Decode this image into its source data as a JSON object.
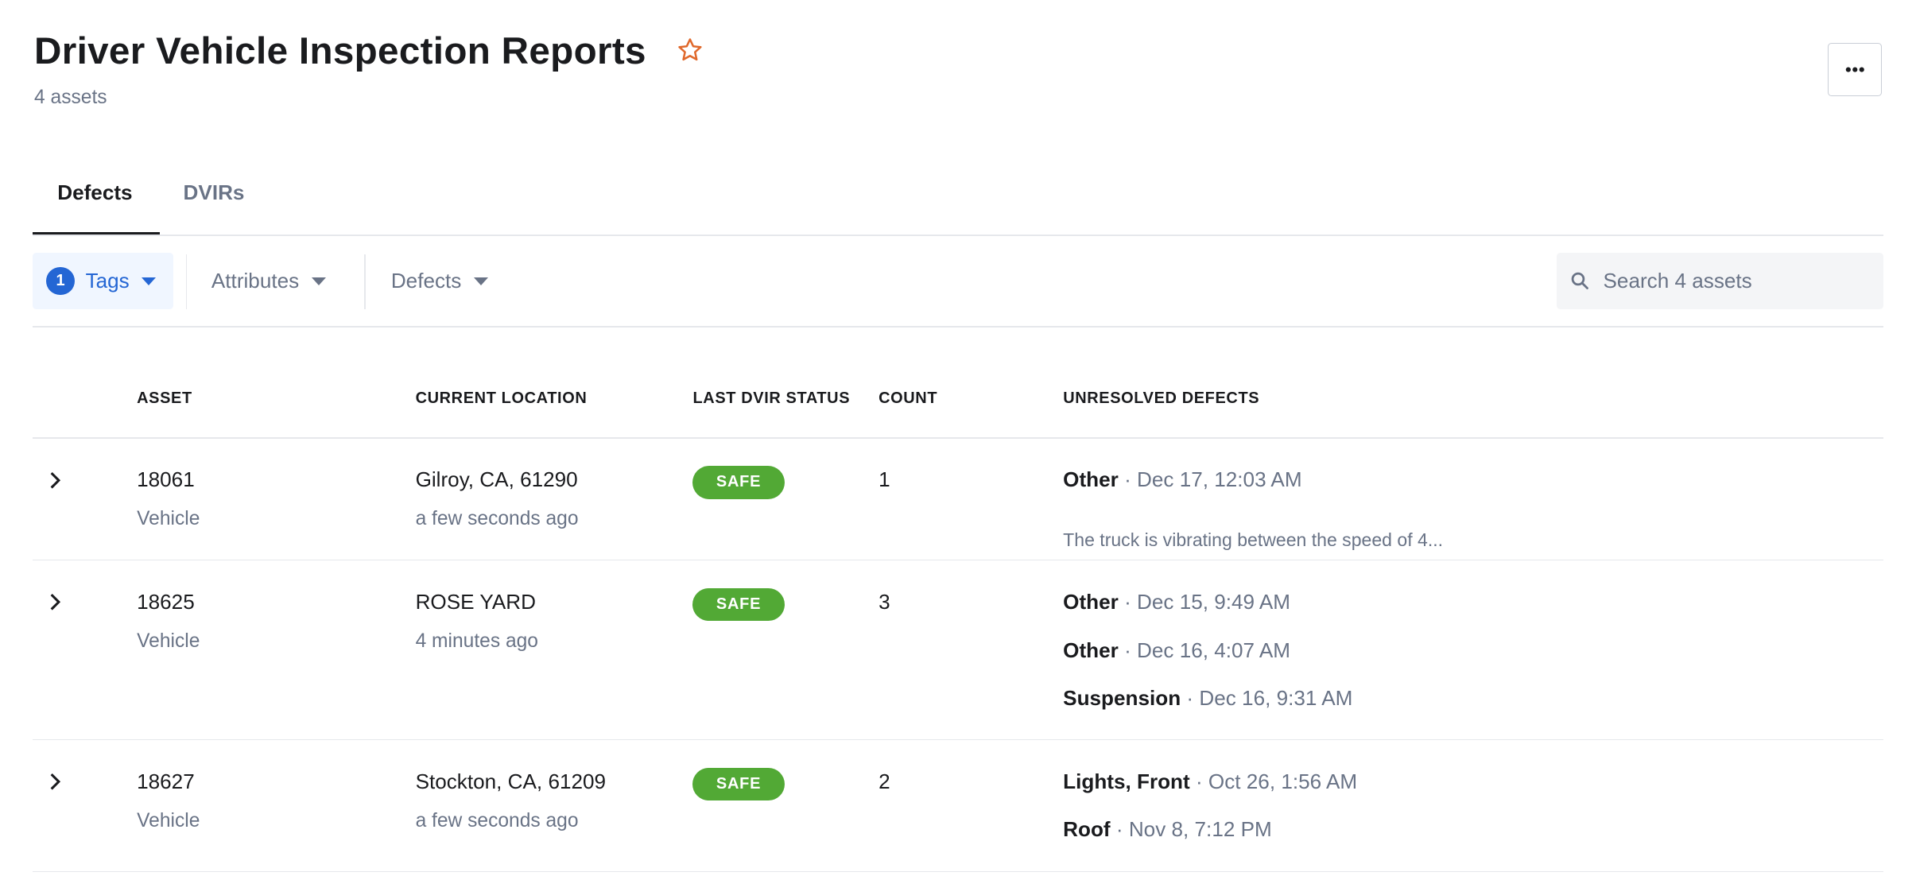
{
  "header": {
    "title": "Driver Vehicle Inspection Reports",
    "favorite_icon": "star-outline-icon",
    "subtitle": "4 assets",
    "more_icon": "ellipsis-icon",
    "accent_color": "#e0692c"
  },
  "tabs": [
    {
      "label": "Defects",
      "active": true
    },
    {
      "label": "DVIRs",
      "active": false
    }
  ],
  "filters": {
    "tags": {
      "label": "Tags",
      "count": "1"
    },
    "attributes": {
      "label": "Attributes"
    },
    "defects": {
      "label": "Defects"
    },
    "search": {
      "placeholder": "Search 4 assets",
      "value": ""
    }
  },
  "table": {
    "columns": [
      "ASSET",
      "CURRENT LOCATION",
      "LAST DVIR STATUS",
      "COUNT",
      "UNRESOLVED DEFECTS"
    ],
    "rows": [
      {
        "asset": "18061",
        "type": "Vehicle",
        "location": "Gilroy, CA, 61290",
        "location_time": "a few seconds ago",
        "status": "SAFE",
        "count": "1",
        "defects": [
          {
            "name": "Other",
            "meta": " · Dec 17, 12:03 AM"
          }
        ],
        "description": "The truck is vibrating between the speed of 4..."
      },
      {
        "asset": "18625",
        "type": "Vehicle",
        "location": "ROSE YARD",
        "location_time": "4 minutes ago",
        "status": "SAFE",
        "count": "3",
        "defects": [
          {
            "name": "Other",
            "meta": " · Dec 15, 9:49 AM"
          },
          {
            "name": "Other",
            "meta": " · Dec 16, 4:07 AM"
          },
          {
            "name": "Suspension",
            "meta": " · Dec 16, 9:31 AM"
          }
        ]
      },
      {
        "asset": "18627",
        "type": "Vehicle",
        "location": "Stockton, CA, 61209",
        "location_time": "a few seconds ago",
        "status": "SAFE",
        "count": "2",
        "defects": [
          {
            "name": "Lights, Front",
            "meta": " · Oct 26, 1:56 AM"
          },
          {
            "name": "Roof",
            "meta": " · Nov 8, 7:12 PM"
          }
        ]
      }
    ]
  },
  "colors": {
    "safe": "#52a935",
    "primary": "#2466d4",
    "muted": "#697386"
  }
}
